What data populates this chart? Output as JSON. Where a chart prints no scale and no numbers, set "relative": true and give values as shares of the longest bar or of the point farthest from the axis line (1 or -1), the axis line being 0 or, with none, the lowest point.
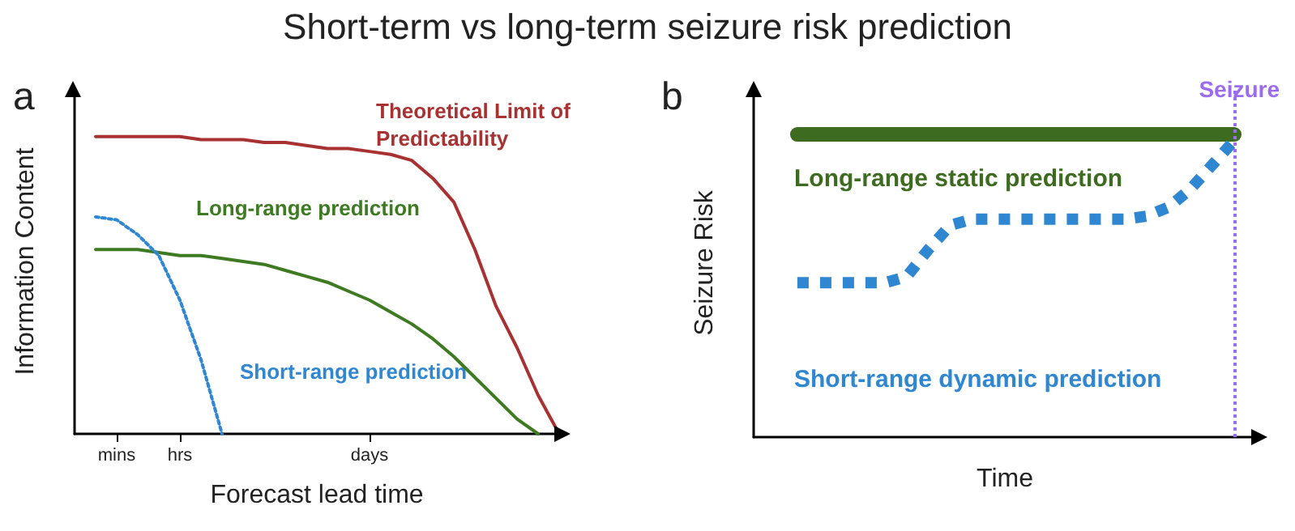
{
  "chart_data": [
    {
      "type": "line",
      "title": "a",
      "annotations": [
        "Short-term vs long-term seizure risk prediction"
      ],
      "xlabel": "Forecast lead time",
      "ylabel": "Information Content",
      "relative": true,
      "tick_labels": "x",
      "marker": "none",
      "categories": [
        null,
        null,
        "mins",
        null,
        null,
        "hrs",
        null,
        null,
        null,
        null,
        null,
        null,
        null,
        null,
        "days",
        null,
        null,
        null,
        null,
        null,
        null,
        null,
        null,
        null
      ],
      "series": [
        {
          "name": "Theoretical Limit of Predictability",
          "color": "#a83232",
          "line_style": "solid",
          "values": [
            null,
            1,
            1,
            1,
            1,
            1,
            0.99,
            0.99,
            0.99,
            0.98,
            0.98,
            0.97,
            0.96,
            0.96,
            0.95,
            0.94,
            0.92,
            0.86,
            0.78,
            0.62,
            0.43,
            0.29,
            0.13,
            0
          ]
        },
        {
          "name": "Long-range prediction",
          "color": "#3d7a22",
          "line_style": "solid",
          "values": [
            null,
            0.62,
            0.62,
            0.62,
            0.61,
            0.6,
            0.6,
            0.59,
            0.58,
            0.57,
            0.55,
            0.53,
            0.51,
            0.48,
            0.45,
            0.41,
            0.37,
            0.32,
            0.26,
            0.19,
            0.12,
            0.05,
            0,
            null
          ]
        },
        {
          "name": "Short-range prediction",
          "color": "#2f86d1",
          "line_style": "dotted",
          "values": [
            null,
            0.73,
            0.72,
            0.67,
            0.6,
            0.45,
            0.25,
            0,
            null,
            null,
            null,
            null,
            null,
            null,
            null,
            null,
            null,
            null,
            null,
            null,
            null,
            null,
            null,
            null
          ]
        }
      ]
    },
    {
      "type": "line",
      "title": "b",
      "xlabel": "Time",
      "ylabel": "Seizure Risk",
      "relative": true,
      "tick_labels": false,
      "marker": "none",
      "categories": [
        null,
        null,
        null,
        null,
        null,
        null,
        null,
        null,
        null,
        null,
        null,
        null,
        null,
        null,
        null,
        null,
        null,
        null,
        null,
        null,
        null,
        null,
        null,
        null
      ],
      "annotations": [
        "Seizure"
      ],
      "series": [
        {
          "name": "Long-range static prediction",
          "color": "#3d6b1f",
          "line_style": "solid",
          "values": [
            null,
            null,
            1,
            1,
            1,
            1,
            1,
            1,
            1,
            1,
            1,
            1,
            1,
            1,
            1,
            1,
            1,
            1,
            1,
            1,
            1,
            1,
            1,
            null
          ]
        },
        {
          "name": "Short-range dynamic prediction",
          "color": "#2f86d1",
          "line_style": "dotted",
          "values": [
            null,
            null,
            0.51,
            0.51,
            0.51,
            0.51,
            0.51,
            0.53,
            0.62,
            0.7,
            0.72,
            0.72,
            0.72,
            0.72,
            0.72,
            0.72,
            0.72,
            0.72,
            0.73,
            0.76,
            0.82,
            0.9,
            0.98,
            null
          ]
        }
      ]
    }
  ]
}
